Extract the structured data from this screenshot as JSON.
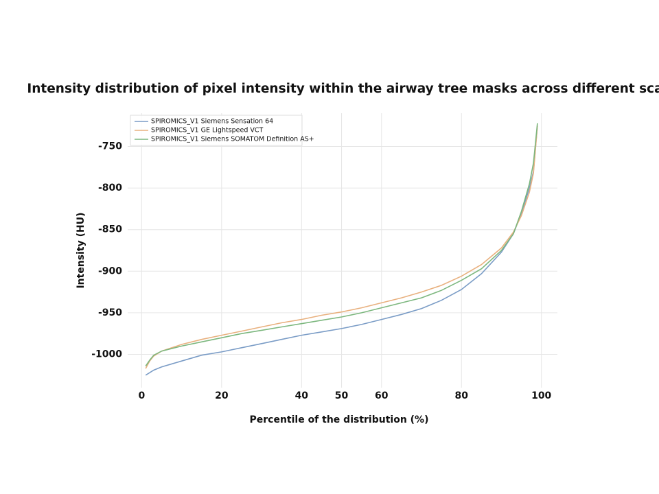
{
  "chart_data": {
    "type": "line",
    "title": "Intensity distribution of pixel intensity within the airway tree masks across different scanners",
    "x_label": "Percentile of the distribution (%)",
    "y_label": "Intensity (HU)",
    "x": [
      1,
      2,
      3,
      5,
      10,
      15,
      20,
      25,
      30,
      35,
      40,
      45,
      50,
      55,
      60,
      65,
      70,
      75,
      80,
      85,
      90,
      93,
      95,
      97,
      98,
      99
    ],
    "series": [
      {
        "name": "SPIROMICS_V1 Siemens Sensation 64",
        "color": "#7a9cc6",
        "values": [
          -1025,
          -1022,
          -1019,
          -1015,
          -1008,
          -1001,
          -997,
          -992,
          -987,
          -982,
          -977,
          -973,
          -969,
          -964,
          -958,
          -952,
          -945,
          -935,
          -922,
          -903,
          -877,
          -855,
          -830,
          -800,
          -780,
          -725
        ]
      },
      {
        "name": "SPIROMICS_V1 GE Lightspeed VCT",
        "color": "#e8b07e",
        "values": [
          -1017,
          -1008,
          -1002,
          -996,
          -988,
          -982,
          -977,
          -972,
          -967,
          -962,
          -958,
          -953,
          -949,
          -944,
          -938,
          -932,
          -925,
          -917,
          -906,
          -892,
          -872,
          -853,
          -833,
          -805,
          -782,
          -725
        ]
      },
      {
        "name": "SPIROMICS_V1 Siemens SOMATOM Definition AS+",
        "color": "#7cb77e",
        "values": [
          -1014,
          -1007,
          -1001,
          -996,
          -990,
          -985,
          -980,
          -975,
          -971,
          -967,
          -963,
          -959,
          -955,
          -950,
          -944,
          -938,
          -932,
          -923,
          -911,
          -897,
          -875,
          -855,
          -828,
          -795,
          -770,
          -722
        ]
      }
    ],
    "xlim": [
      -3.5,
      104
    ],
    "xticks": [
      0,
      20,
      40,
      50,
      60,
      80,
      100
    ],
    "ylim": [
      -1040,
      -710
    ],
    "yticks": [
      -1000,
      -950,
      -900,
      -850,
      -800,
      -750
    ],
    "grid": true,
    "legend": "upper-left"
  }
}
